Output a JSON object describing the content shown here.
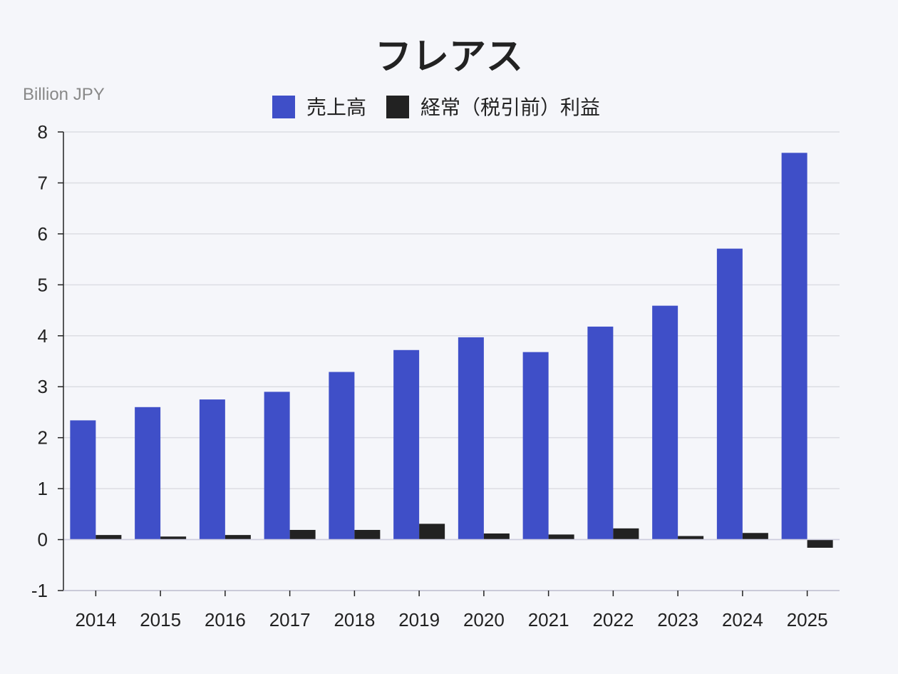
{
  "chart_data": {
    "type": "bar",
    "title": "フレアス",
    "unit_label": "Billion JPY",
    "categories": [
      "2014",
      "2015",
      "2016",
      "2017",
      "2018",
      "2019",
      "2020",
      "2021",
      "2022",
      "2023",
      "2024",
      "2025"
    ],
    "series": [
      {
        "name": "売上高",
        "color": "#3f4fc8",
        "values": [
          2.34,
          2.6,
          2.75,
          2.9,
          3.29,
          3.72,
          3.97,
          3.68,
          4.18,
          4.59,
          5.71,
          7.59
        ]
      },
      {
        "name": "経常（税引前）利益",
        "color": "#222222",
        "values": [
          0.09,
          0.06,
          0.09,
          0.19,
          0.19,
          0.31,
          0.12,
          0.1,
          0.22,
          0.07,
          0.13,
          -0.16
        ]
      }
    ],
    "ylim": [
      -1,
      8
    ],
    "yticks": [
      -1,
      0,
      1,
      2,
      3,
      4,
      5,
      6,
      7,
      8
    ],
    "grid": true,
    "legend_position": "top-center"
  }
}
